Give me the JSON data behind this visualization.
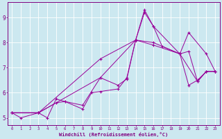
{
  "background_color": "#cce8f0",
  "line_color": "#990099",
  "grid_color": "#ffffff",
  "xlabel": "Windchill (Refroidissement éolien,°C)",
  "xlabel_color": "#800080",
  "tick_color": "#800080",
  "xlim": [
    -0.5,
    23.5
  ],
  "ylim": [
    4.7,
    9.6
  ],
  "yticks": [
    5,
    6,
    7,
    8,
    9
  ],
  "xticks": [
    0,
    1,
    2,
    3,
    4,
    5,
    6,
    7,
    8,
    9,
    10,
    11,
    12,
    13,
    14,
    15,
    16,
    17,
    18,
    19,
    20,
    21,
    22,
    23
  ],
  "lines": [
    {
      "x": [
        0,
        1,
        3,
        4,
        5,
        6,
        8,
        9,
        10,
        12,
        13,
        14,
        15,
        16,
        17,
        19,
        20,
        21,
        22,
        23
      ],
      "y": [
        5.2,
        5.0,
        5.2,
        5.0,
        5.75,
        5.65,
        5.35,
        6.0,
        6.05,
        6.15,
        6.6,
        8.1,
        9.2,
        8.65,
        7.85,
        7.55,
        6.3,
        6.5,
        6.85,
        6.85
      ]
    },
    {
      "x": [
        0,
        3,
        5,
        6,
        8,
        10,
        12,
        13,
        14,
        15,
        16,
        19,
        20,
        22,
        23
      ],
      "y": [
        5.2,
        5.2,
        5.6,
        5.65,
        5.5,
        6.6,
        6.3,
        6.55,
        8.1,
        9.3,
        8.65,
        7.55,
        8.4,
        7.55,
        6.85
      ]
    },
    {
      "x": [
        0,
        3,
        10,
        14,
        16,
        19,
        20,
        21,
        22,
        23
      ],
      "y": [
        5.2,
        5.2,
        7.35,
        8.1,
        8.0,
        7.55,
        7.65,
        6.45,
        6.85,
        6.85
      ]
    },
    {
      "x": [
        0,
        3,
        10,
        14,
        16,
        19,
        21,
        22,
        23
      ],
      "y": [
        5.2,
        5.2,
        6.6,
        8.1,
        7.9,
        7.55,
        6.45,
        6.85,
        6.85
      ]
    }
  ]
}
